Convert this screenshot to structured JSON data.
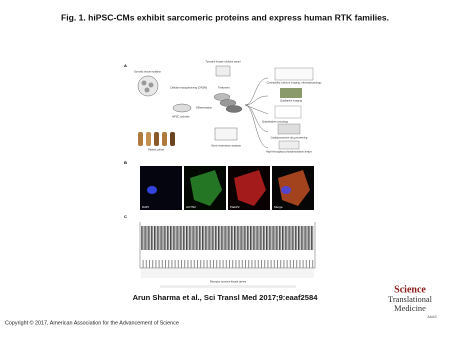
{
  "header": {
    "title": "Fig. 1. hiPSC-CMs exhibit sarcomeric proteins and express human RTK families."
  },
  "figure": {
    "panels": {
      "a": "A",
      "b": "B",
      "c": "C"
    },
    "panel_a": {
      "labels": [
        "Somatic tissue isolation",
        "Cellular reprogramming (OKSM)",
        "hiPSC colonies",
        "Differentiation",
        "Tyrosine kinase inhibitor panel",
        "Treatment",
        "Patient cohort",
        "Gene expression analysis",
        "Contractility, calcium imaging, electrophysiology",
        "Qualitative imaging",
        "Quantitative toxicology",
        "Cardioprotective drug screening",
        "High-throughput phosphorylation arrays"
      ]
    },
    "panel_b": {
      "labels": [
        "DAPI",
        "ACTN2",
        "PlakP2",
        "Merge"
      ]
    },
    "panel_c": {
      "xlabel": "Receptor tyrosine kinase genes"
    }
  },
  "citation": "Arun Sharma et al., Sci Transl Med 2017;9:eaaf2584",
  "copyright": "Copyright © 2017, American Association for the Advancement of Science",
  "logo": {
    "line1": "Science",
    "line2": "Translational",
    "line3": "Medicine",
    "org": "AAAS"
  }
}
